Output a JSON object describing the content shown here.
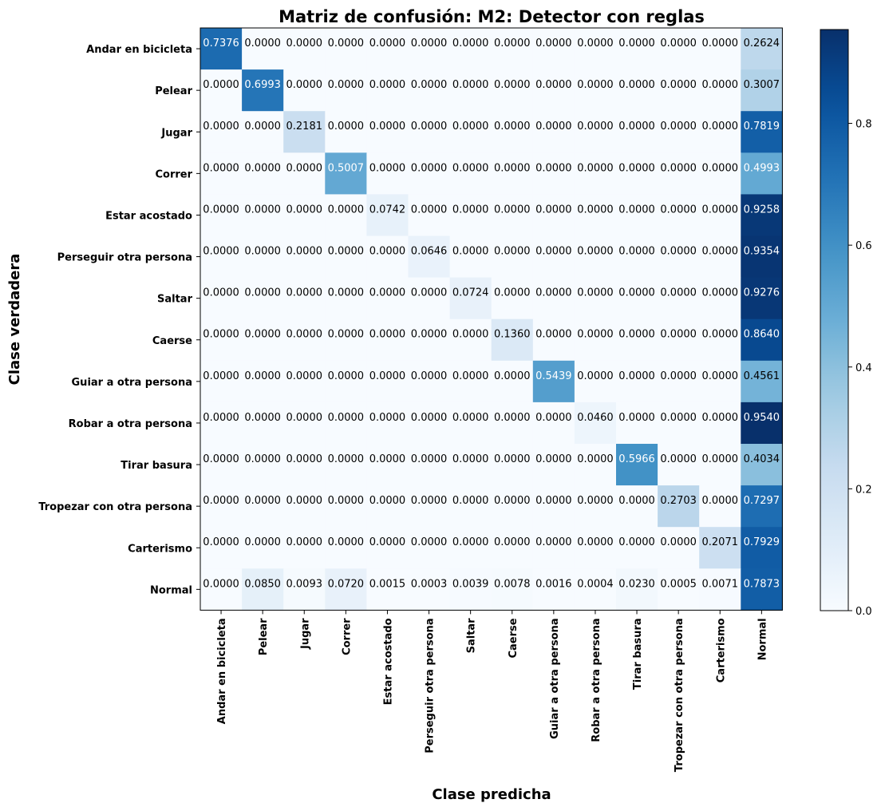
{
  "chart_data": {
    "type": "heatmap",
    "title": "Matriz de confusión: M2: Detector con reglas",
    "xlabel": "Clase predicha",
    "ylabel": "Clase verdadera",
    "x_categories": [
      "Andar en bicicleta",
      "Pelear",
      "Jugar",
      "Correr",
      "Estar acostado",
      "Perseguir otra persona",
      "Saltar",
      "Caerse",
      "Guiar a otra persona",
      "Robar a otra persona",
      "Tirar basura",
      "Tropezar con otra persona",
      "Carterismo",
      "Normal"
    ],
    "y_categories": [
      "Andar en bicicleta",
      "Pelear",
      "Jugar",
      "Correr",
      "Estar acostado",
      "Perseguir otra persona",
      "Saltar",
      "Caerse",
      "Guiar a otra persona",
      "Robar a otra persona",
      "Tirar basura",
      "Tropezar con otra persona",
      "Carterismo",
      "Normal"
    ],
    "values": [
      [
        0.7376,
        0.0,
        0.0,
        0.0,
        0.0,
        0.0,
        0.0,
        0.0,
        0.0,
        0.0,
        0.0,
        0.0,
        0.0,
        0.2624
      ],
      [
        0.0,
        0.6993,
        0.0,
        0.0,
        0.0,
        0.0,
        0.0,
        0.0,
        0.0,
        0.0,
        0.0,
        0.0,
        0.0,
        0.3007
      ],
      [
        0.0,
        0.0,
        0.2181,
        0.0,
        0.0,
        0.0,
        0.0,
        0.0,
        0.0,
        0.0,
        0.0,
        0.0,
        0.0,
        0.7819
      ],
      [
        0.0,
        0.0,
        0.0,
        0.5007,
        0.0,
        0.0,
        0.0,
        0.0,
        0.0,
        0.0,
        0.0,
        0.0,
        0.0,
        0.4993
      ],
      [
        0.0,
        0.0,
        0.0,
        0.0,
        0.0742,
        0.0,
        0.0,
        0.0,
        0.0,
        0.0,
        0.0,
        0.0,
        0.0,
        0.9258
      ],
      [
        0.0,
        0.0,
        0.0,
        0.0,
        0.0,
        0.0646,
        0.0,
        0.0,
        0.0,
        0.0,
        0.0,
        0.0,
        0.0,
        0.9354
      ],
      [
        0.0,
        0.0,
        0.0,
        0.0,
        0.0,
        0.0,
        0.0724,
        0.0,
        0.0,
        0.0,
        0.0,
        0.0,
        0.0,
        0.9276
      ],
      [
        0.0,
        0.0,
        0.0,
        0.0,
        0.0,
        0.0,
        0.0,
        0.136,
        0.0,
        0.0,
        0.0,
        0.0,
        0.0,
        0.864
      ],
      [
        0.0,
        0.0,
        0.0,
        0.0,
        0.0,
        0.0,
        0.0,
        0.0,
        0.5439,
        0.0,
        0.0,
        0.0,
        0.0,
        0.4561
      ],
      [
        0.0,
        0.0,
        0.0,
        0.0,
        0.0,
        0.0,
        0.0,
        0.0,
        0.0,
        0.046,
        0.0,
        0.0,
        0.0,
        0.954
      ],
      [
        0.0,
        0.0,
        0.0,
        0.0,
        0.0,
        0.0,
        0.0,
        0.0,
        0.0,
        0.0,
        0.5966,
        0.0,
        0.0,
        0.4034
      ],
      [
        0.0,
        0.0,
        0.0,
        0.0,
        0.0,
        0.0,
        0.0,
        0.0,
        0.0,
        0.0,
        0.0,
        0.2703,
        0.0,
        0.7297
      ],
      [
        0.0,
        0.0,
        0.0,
        0.0,
        0.0,
        0.0,
        0.0,
        0.0,
        0.0,
        0.0,
        0.0,
        0.0,
        0.2071,
        0.7929
      ],
      [
        0.0,
        0.085,
        0.0093,
        0.072,
        0.0015,
        0.0003,
        0.0039,
        0.0078,
        0.0016,
        0.0004,
        0.023,
        0.0005,
        0.0071,
        0.7873
      ]
    ],
    "value_format_decimals": 4,
    "colormap": "Blues",
    "color_range": [
      0,
      0.954
    ],
    "colorbar_ticks": [
      0,
      0.2,
      0.4,
      0.6,
      0.8
    ],
    "colorbar_tick_labels": [
      "0.0",
      "0.2",
      "0.4",
      "0.6",
      "0.8"
    ],
    "grid": false
  }
}
